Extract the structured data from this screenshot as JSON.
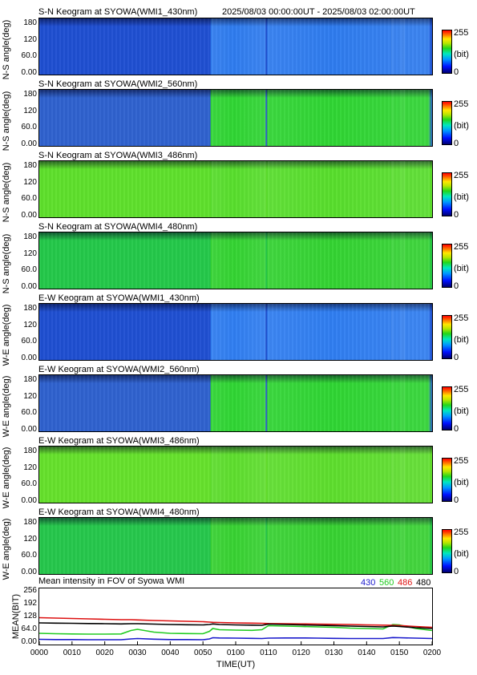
{
  "header": {
    "period": "2025/08/03 00:00:00UT - 2025/08/03 02:00:00UT"
  },
  "panels": [
    {
      "title": "S-N Keogram at SYOWA(WMI1_430nm)",
      "ylabel": "N-S angle(deg)",
      "base": "#1f4fd2",
      "active": "#2e7cf0"
    },
    {
      "title": "S-N Keogram at SYOWA(WMI2_560nm)",
      "ylabel": "N-S angle(deg)",
      "base": "#2f62cf",
      "active": "#2fd633"
    },
    {
      "title": "S-N Keogram at SYOWA(WMI3_486nm)",
      "ylabel": "N-S angle(deg)",
      "base": "#5fe12c",
      "active": "#58df2c"
    },
    {
      "title": "S-N Keogram at SYOWA(WMI4_480nm)",
      "ylabel": "N-S angle(deg)",
      "base": "#24c94a",
      "active": "#34d432"
    },
    {
      "title": "E-W Keogram at SYOWA(WMI1_430nm)",
      "ylabel": "W-E angle(deg)",
      "base": "#1f4fd2",
      "active": "#2f7ef2"
    },
    {
      "title": "E-W Keogram at SYOWA(WMI2_560nm)",
      "ylabel": "W-E angle(deg)",
      "base": "#2f62cf",
      "active": "#2fd633"
    },
    {
      "title": "E-W Keogram at SYOWA(WMI3_486nm)",
      "ylabel": "W-E angle(deg)",
      "base": "#66e22c",
      "active": "#5edf2d"
    },
    {
      "title": "E-W Keogram at SYOWA(WMI4_480nm)",
      "ylabel": "W-E angle(deg)",
      "base": "#26c84c",
      "active": "#38d332"
    }
  ],
  "keogram_yticks": [
    "180",
    "120",
    "60.0",
    "0.00"
  ],
  "colorbar": {
    "max": "255",
    "unit": "(bit)",
    "min": "0"
  },
  "mean_panel": {
    "title": "Mean intensity in FOV of Syowa WMI",
    "legend": [
      {
        "label": "430",
        "color": "#1a1acc"
      },
      {
        "label": "560",
        "color": "#22cc22"
      },
      {
        "label": "486",
        "color": "#dd1111"
      },
      {
        "label": "480",
        "color": "#000000"
      }
    ]
  },
  "chart_data": {
    "type": "line",
    "xlabel": "TIME(UT)",
    "ylabel": "MEAN(BIT)",
    "x_ticks": [
      "0000",
      "0010",
      "0020",
      "0030",
      "0040",
      "0050",
      "0100",
      "0110",
      "0120",
      "0130",
      "0140",
      "0150",
      "0200"
    ],
    "y_ticks": [
      "256",
      "192",
      "128",
      "64.0",
      "0.00"
    ],
    "ylim": [
      0,
      256
    ],
    "x": [
      0,
      5,
      10,
      15,
      20,
      25,
      28,
      30,
      35,
      40,
      45,
      50,
      52,
      53,
      55,
      60,
      65,
      68,
      70,
      75,
      80,
      85,
      90,
      95,
      100,
      105,
      108,
      110,
      115,
      120
    ],
    "series": [
      {
        "name": "430",
        "color": "#1a1acc",
        "values": [
          18,
          17,
          17,
          16,
          16,
          16,
          20,
          22,
          19,
          17,
          17,
          16,
          20,
          26,
          25,
          24,
          23,
          22,
          24,
          25,
          25,
          24,
          23,
          22,
          22,
          22,
          27,
          26,
          24,
          22
        ]
      },
      {
        "name": "560",
        "color": "#22cc22",
        "values": [
          48,
          46,
          45,
          44,
          44,
          45,
          62,
          68,
          54,
          48,
          47,
          46,
          58,
          72,
          66,
          64,
          63,
          66,
          86,
          84,
          82,
          80,
          78,
          74,
          72,
          70,
          92,
          90,
          72,
          62
        ]
      },
      {
        "name": "486",
        "color": "#dd1111",
        "values": [
          126,
          124,
          122,
          120,
          118,
          116,
          116,
          115,
          112,
          110,
          108,
          106,
          104,
          103,
          102,
          100,
          99,
          98,
          97,
          96,
          95,
          94,
          93,
          92,
          90,
          89,
          88,
          87,
          82,
          78
        ]
      },
      {
        "name": "480",
        "color": "#000000",
        "values": [
          100,
          99,
          98,
          97,
          96,
          95,
          96,
          96,
          94,
          92,
          91,
          90,
          92,
          95,
          92,
          90,
          89,
          88,
          94,
          92,
          90,
          88,
          86,
          84,
          82,
          80,
          84,
          82,
          76,
          72
        ]
      }
    ]
  }
}
